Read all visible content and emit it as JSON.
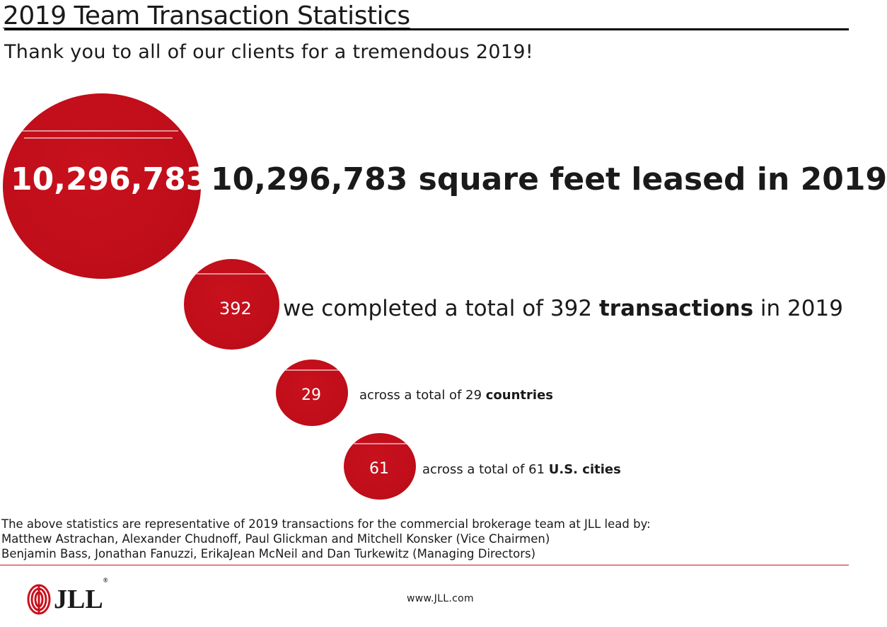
{
  "header": {
    "title": "2019 Team Transaction Statistics",
    "subtitle": "Thank you to all of our clients for a tremendous 2019!"
  },
  "stats": [
    {
      "number": "10,296,783",
      "text_pre": "10,296,783 square feet leased in 2019",
      "text_bold": "",
      "text_post": ""
    },
    {
      "number": "392",
      "text_pre": "we completed a total of 392 ",
      "text_bold": "transactions",
      "text_post": " in 2019"
    },
    {
      "number": "29",
      "text_pre": "across a total of 29 ",
      "text_bold": "countries",
      "text_post": ""
    },
    {
      "number": "61",
      "text_pre": "across a total of 61 ",
      "text_bold": "U.S. cities",
      "text_post": ""
    }
  ],
  "footnote": {
    "line1": "The above statistics are representative of 2019 transactions for the commercial brokerage team at JLL lead by:",
    "line2": "Matthew Astrachan, Alexander Chudnoff, Paul Glickman and Mitchell Konsker (Vice Chairmen)",
    "line3": "Benjamin Bass, Jonathan Fanuzzi, ErikaJean McNeil and Dan Turkewitz (Managing Directors)"
  },
  "footer": {
    "logo_text": "JLL",
    "logo_reg": "®",
    "url": "www.JLL.com"
  },
  "colors": {
    "accent": "#c8111d",
    "text": "#1a1a1a"
  }
}
